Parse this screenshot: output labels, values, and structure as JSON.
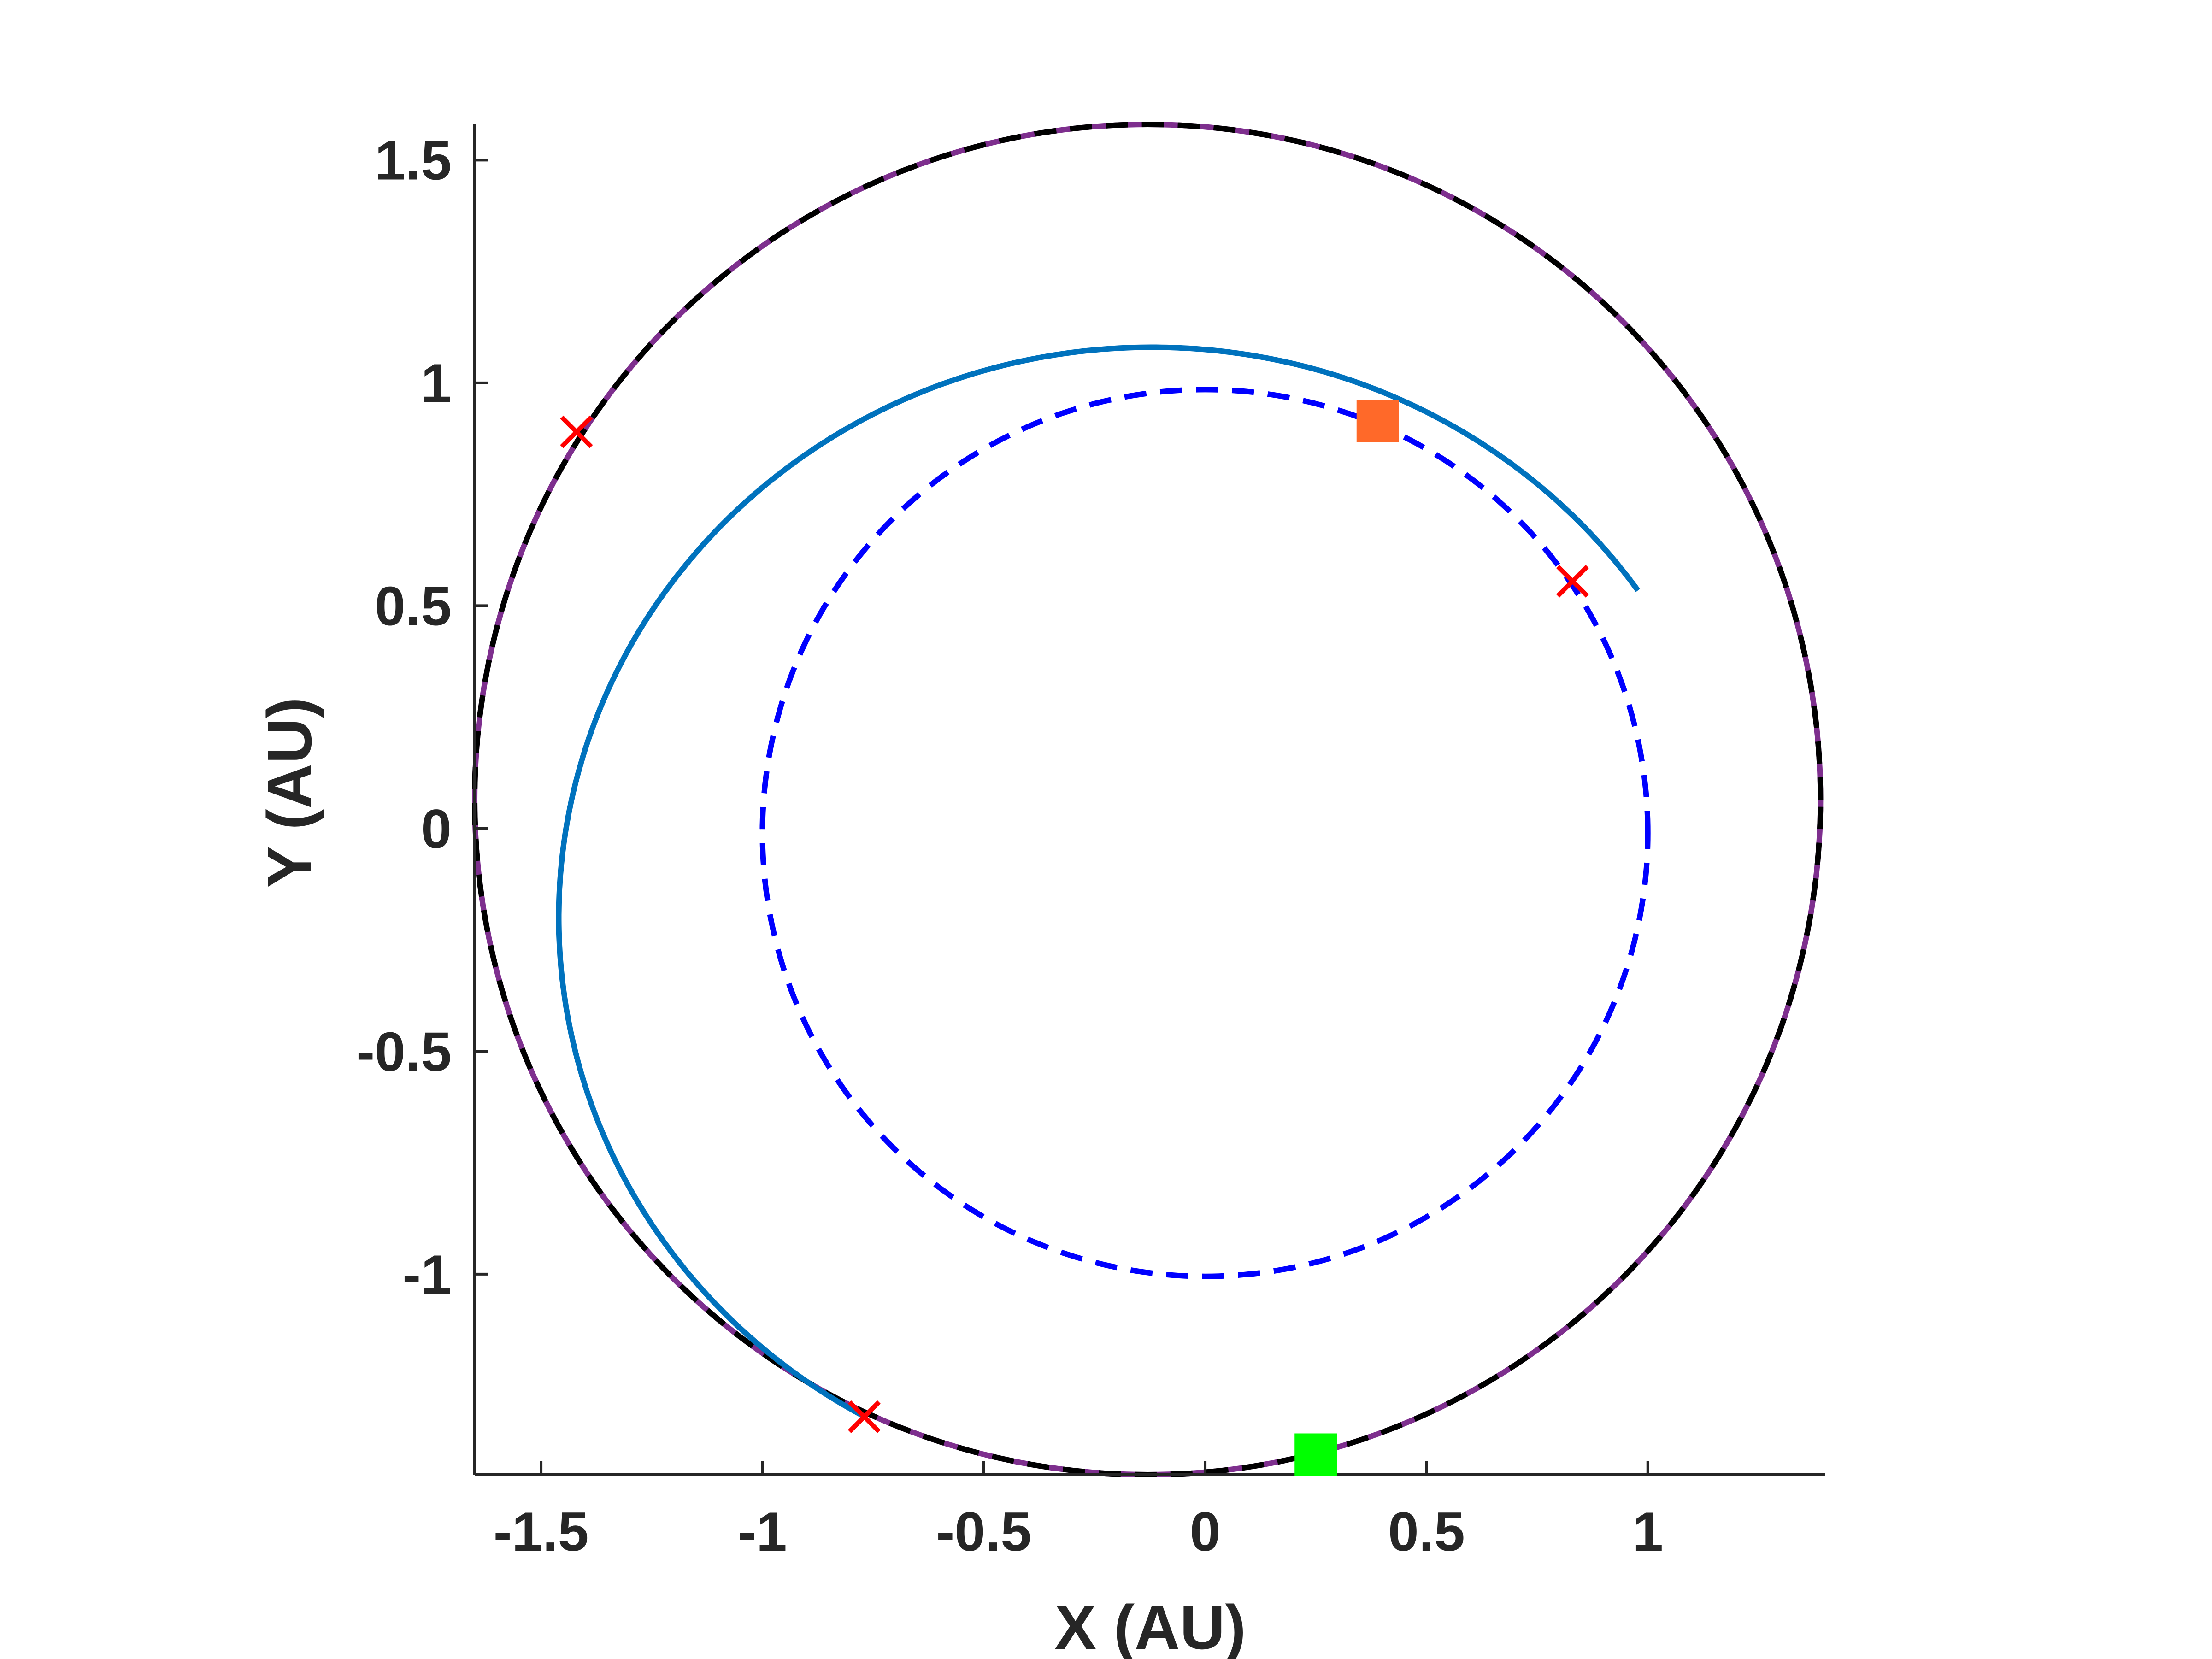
{
  "chart_data": {
    "type": "line",
    "title": "",
    "xlabel": "X (AU)",
    "ylabel": "Y (AU)",
    "xlim": [
      -1.65,
      1.4
    ],
    "ylim": [
      -1.45,
      1.58
    ],
    "xticks": [
      -1.5,
      -1,
      -0.5,
      0,
      0.5,
      1
    ],
    "xtick_labels": [
      "-1.5",
      "-1",
      "-0.5",
      "0",
      "0.5",
      "1"
    ],
    "yticks": [
      -1,
      -0.5,
      0,
      0.5,
      1,
      1.5
    ],
    "ytick_labels": [
      "-1",
      "-0.5",
      "0",
      "0.5",
      "1",
      "1.5"
    ],
    "grid": false,
    "legend": "none",
    "series": [
      {
        "kind": "ellipse-dashed",
        "color": "#0000ff",
        "center": [
          0.0,
          -0.01
        ],
        "radii": [
          1.0,
          0.995
        ],
        "rotation_deg": 0,
        "arc_deg": [
          0,
          360
        ]
      },
      {
        "kind": "ellipse-dashed",
        "color": "#000000",
        "overlay_color": "#7e2f8e",
        "center": [
          -0.13,
          0.065
        ],
        "radii": [
          1.52,
          1.515
        ],
        "rotation_deg": 0,
        "arc_deg": [
          0,
          360
        ]
      },
      {
        "kind": "ellipse-solid",
        "color": "#0072bd",
        "center": [
          -0.12,
          -0.2
        ],
        "radii": [
          1.34,
          1.28
        ],
        "rotation_deg": 0,
        "arc_deg": [
          35,
          241
        ]
      }
    ],
    "points": [
      {
        "marker": "x",
        "color": "#ff0000",
        "x": -1.42,
        "y": 0.89
      },
      {
        "marker": "x",
        "color": "#ff0000",
        "x": 0.83,
        "y": 0.555
      },
      {
        "marker": "x",
        "color": "#ff0000",
        "x": -0.77,
        "y": -1.32
      },
      {
        "marker": "square",
        "color": "#ff6929",
        "x": 0.39,
        "y": 0.915
      },
      {
        "marker": "square",
        "color": "#00ff00",
        "x": 0.25,
        "y": -1.405
      }
    ]
  }
}
